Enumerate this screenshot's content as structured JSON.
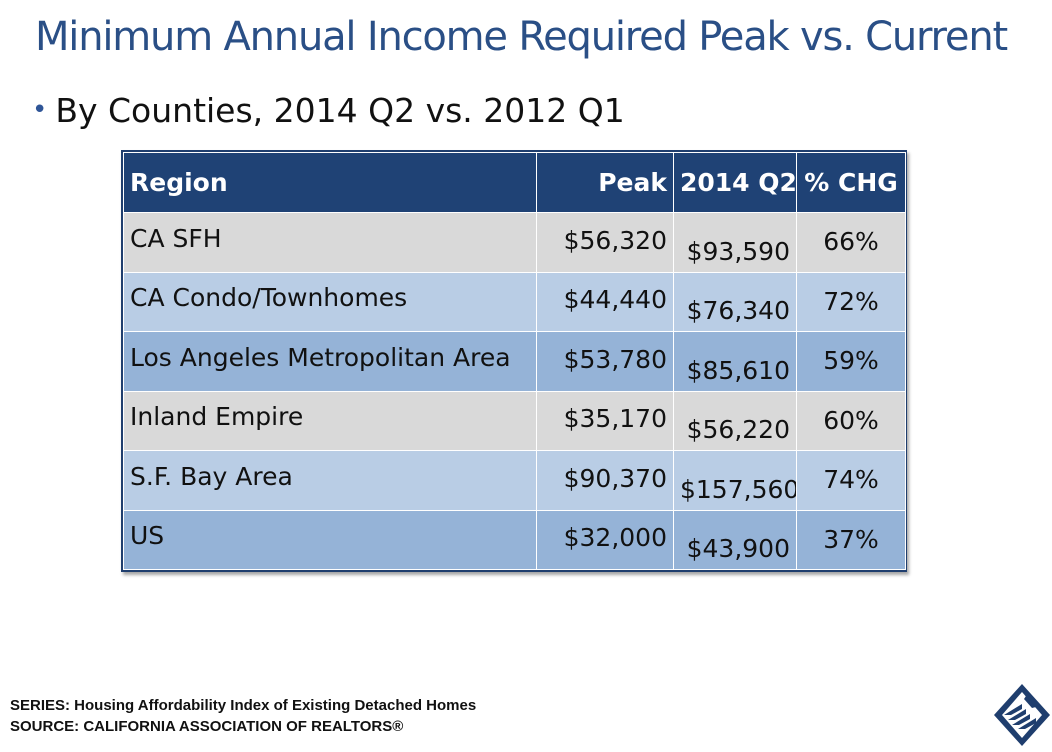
{
  "slide": {
    "title": "Minimum Annual Income Required Peak vs. Current",
    "bullet": "By Counties, 2014 Q2 vs. 2012 Q1"
  },
  "table": {
    "headers": {
      "region": "Region",
      "peak": "Peak",
      "q2": "2014 Q2",
      "chg": "% CHG"
    },
    "rows": [
      {
        "region": "CA SFH",
        "peak": "$56,320",
        "q2": "$93,590",
        "chg": "66%"
      },
      {
        "region": "CA Condo/Townhomes",
        "peak": "$44,440",
        "q2": "$76,340",
        "chg": "72%"
      },
      {
        "region": "Los Angeles Metropolitan Area",
        "peak": "$53,780",
        "q2": "$85,610",
        "chg": "59%"
      },
      {
        "region": "Inland Empire",
        "peak": "$35,170",
        "q2": "$56,220",
        "chg": "60%"
      },
      {
        "region": "S.F. Bay Area",
        "peak": "$90,370",
        "q2": "$157,560",
        "chg": "74%"
      },
      {
        "region": "US",
        "peak": "$32,000",
        "q2": "$43,900",
        "chg": "37%"
      }
    ]
  },
  "footer": {
    "series": "SERIES: Housing Affordability Index of Existing Detached Homes",
    "source": "SOURCE:  CALIFORNIA ASSOCIATION OF REALTORS®"
  },
  "logo": {
    "icon": "car-logo-icon"
  },
  "colors": {
    "title": "#2a4f86",
    "header_bg": "#1f4275",
    "row_gray": "#d9d9d9",
    "row_light_blue": "#b9cde5",
    "row_mid_blue": "#95b3d7"
  }
}
